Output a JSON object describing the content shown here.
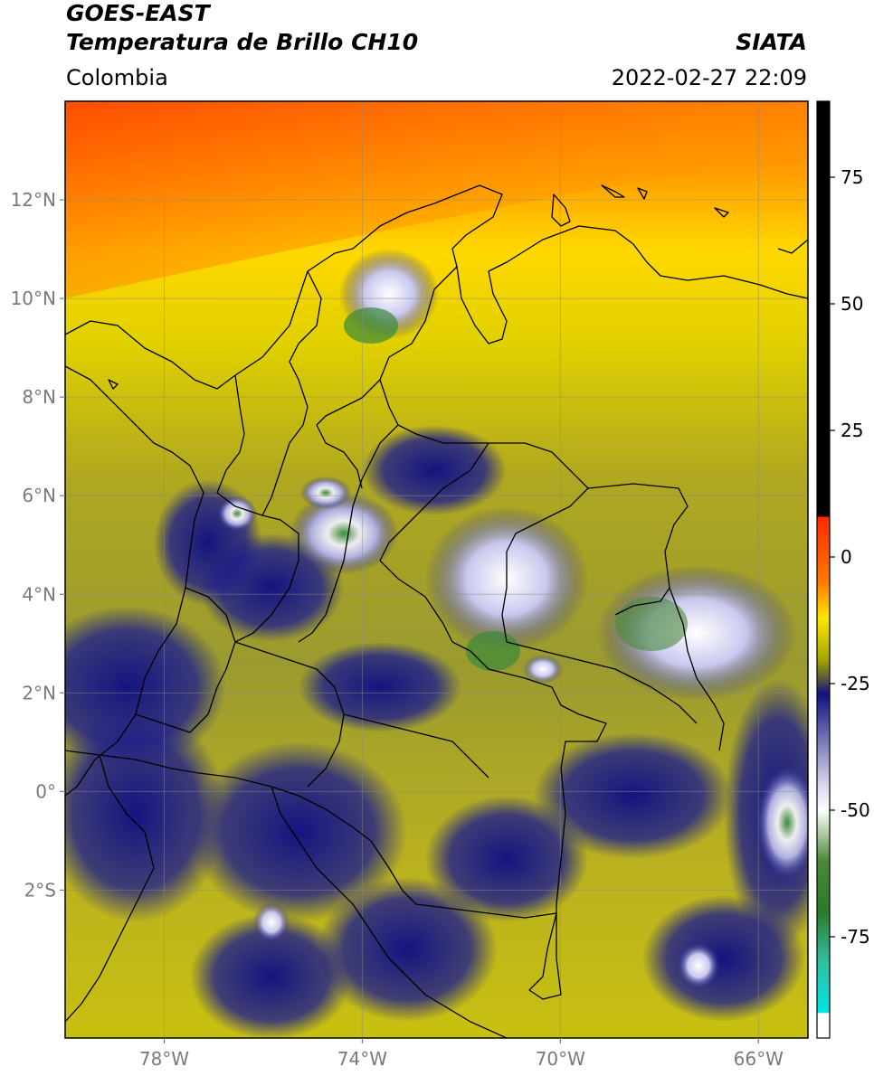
{
  "header": {
    "satellite": "GOES-EAST",
    "product": "Temperatura de Brillo CH10",
    "region": "Colombia",
    "organization": "SIATA",
    "datetime": "2022-02-27 22:09"
  },
  "map": {
    "lon_range": [
      -80,
      -65
    ],
    "lat_range": [
      -5,
      14
    ],
    "lon_ticks": [
      {
        "value": -78,
        "label": "78°W"
      },
      {
        "value": -74,
        "label": "74°W"
      },
      {
        "value": -70,
        "label": "70°W"
      },
      {
        "value": -66,
        "label": "66°W"
      }
    ],
    "lat_ticks": [
      {
        "value": 12,
        "label": "12°N"
      },
      {
        "value": 10,
        "label": "10°N"
      },
      {
        "value": 8,
        "label": "8°N"
      },
      {
        "value": 6,
        "label": "6°N"
      },
      {
        "value": 4,
        "label": "4°N"
      },
      {
        "value": 2,
        "label": "2°N"
      },
      {
        "value": 0,
        "label": "0°"
      },
      {
        "value": -2,
        "label": "2°S"
      }
    ],
    "grid": true
  },
  "colorbar": {
    "range": [
      -95,
      90
    ],
    "ticks": [
      {
        "value": 75,
        "label": "75"
      },
      {
        "value": 50,
        "label": "50"
      },
      {
        "value": 25,
        "label": "25"
      },
      {
        "value": 0,
        "label": "0"
      },
      {
        "value": -25,
        "label": "-25"
      },
      {
        "value": -50,
        "label": "-50"
      },
      {
        "value": -75,
        "label": "-75"
      }
    ],
    "stops": [
      {
        "value": 90,
        "color": "#000000"
      },
      {
        "value": 8,
        "color": "#000000"
      },
      {
        "value": 7.9,
        "color": "#ff2a00"
      },
      {
        "value": -5,
        "color": "#ff7a00"
      },
      {
        "value": -12,
        "color": "#ffe600"
      },
      {
        "value": -20,
        "color": "#a8a800"
      },
      {
        "value": -24,
        "color": "#5a5a3a"
      },
      {
        "value": -27,
        "color": "#101080"
      },
      {
        "value": -45,
        "color": "#d8d8ee"
      },
      {
        "value": -50,
        "color": "#ffffff"
      },
      {
        "value": -60,
        "color": "#4a8a3a"
      },
      {
        "value": -70,
        "color": "#2a7a2a"
      },
      {
        "value": -80,
        "color": "#30c0a0"
      },
      {
        "value": -90,
        "color": "#00e5e5"
      },
      {
        "value": -90.1,
        "color": "#ffffff"
      },
      {
        "value": -95,
        "color": "#ffffff"
      }
    ]
  }
}
